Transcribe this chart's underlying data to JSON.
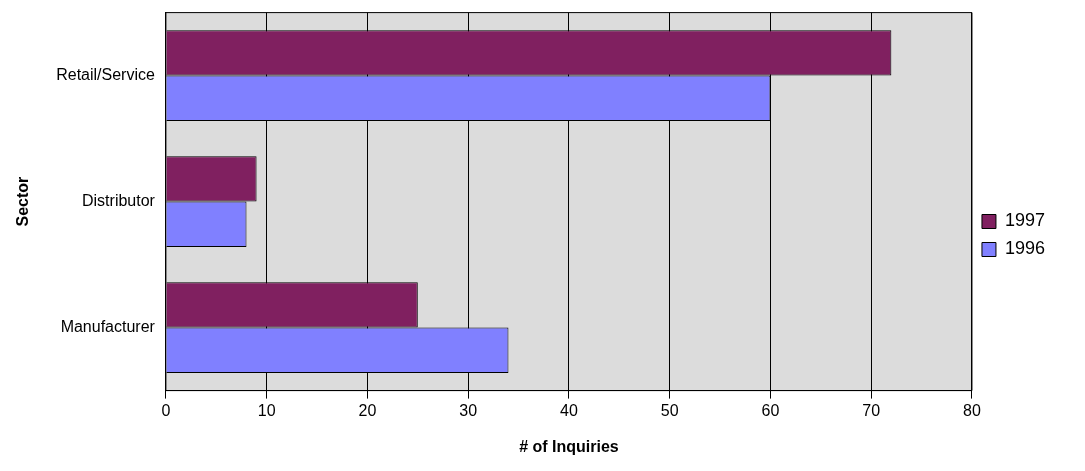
{
  "chart_data": {
    "type": "bar",
    "orientation": "horizontal",
    "xlabel": "# of Inquiries",
    "ylabel": "Sector",
    "categories": [
      "Retail/Service",
      "Distributor",
      "Manufacturer"
    ],
    "series": [
      {
        "name": "1997",
        "color": "#802060",
        "values": [
          72,
          9,
          25
        ]
      },
      {
        "name": "1996",
        "color": "#8080ff",
        "values": [
          60,
          8,
          34
        ]
      }
    ],
    "xlim": [
      0,
      80
    ],
    "xticks": [
      0,
      10,
      20,
      30,
      40,
      50,
      60,
      70,
      80
    ],
    "grid": "x",
    "legend": "right"
  }
}
